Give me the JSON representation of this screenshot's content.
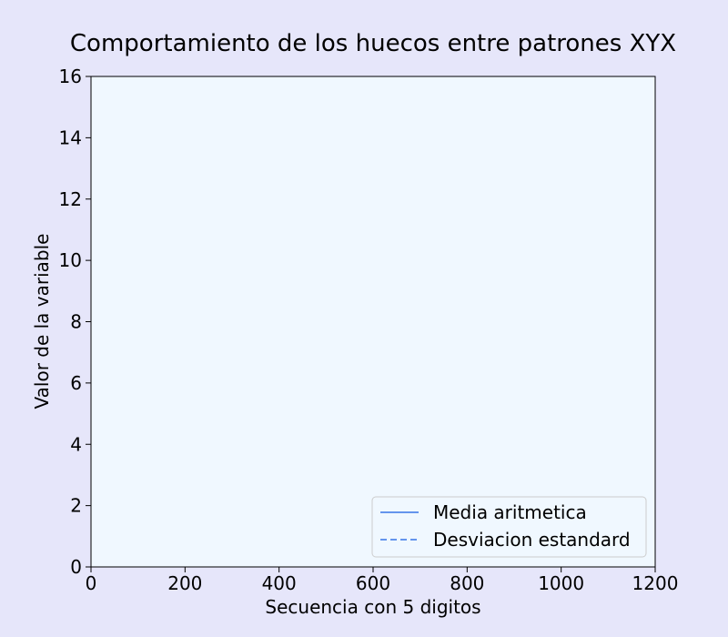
{
  "chart_data": {
    "type": "line",
    "title": "Comportamiento de los huecos entre patrones XYX",
    "xlabel": "Secuencia con 5 digitos",
    "ylabel": "Valor de la variable",
    "xlim": [
      0,
      1200
    ],
    "ylim": [
      0,
      16
    ],
    "xticks": [
      "0",
      "200",
      "400",
      "600",
      "800",
      "1000",
      "1200"
    ],
    "yticks": [
      "0",
      "2",
      "4",
      "6",
      "8",
      "10",
      "12",
      "14",
      "16"
    ],
    "grid": false,
    "legend_position": "lower-right",
    "series": [
      {
        "name": "Media aritmetica",
        "style": "solid",
        "color": "#6495ed",
        "x": [],
        "y": []
      },
      {
        "name": "Desviacion estandard",
        "style": "dashed",
        "color": "#6495ed",
        "x": [],
        "y": []
      }
    ],
    "colors": {
      "figure_bg": "#e6e6fa",
      "plot_bg": "#f0f8ff"
    }
  }
}
